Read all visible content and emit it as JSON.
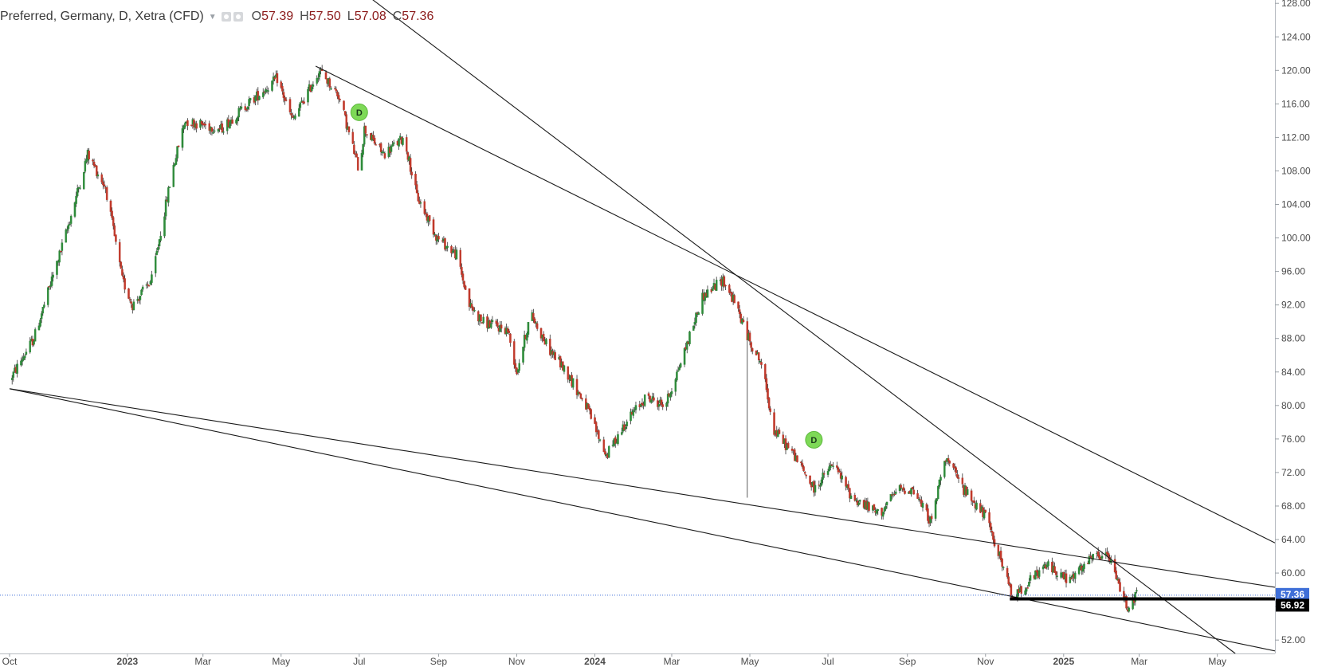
{
  "legend": {
    "title": "Preferred, Germany, D, Xetra (CFD)",
    "open_key": "O",
    "open": "57.39",
    "high_key": "H",
    "high": "57.50",
    "low_key": "L",
    "low": "57.08",
    "close_key": "C",
    "close": "57.36"
  },
  "colors": {
    "up": "#2e8b3a",
    "down": "#c0392b",
    "wick": "#333333",
    "trendline": "#1a1a1a",
    "last_price_tag": "#3f6fd8",
    "support_tag": "#000000",
    "dividend_marker": "#7ed957"
  },
  "chart_data": {
    "type": "candlestick",
    "y_axis": {
      "range": [
        50.4,
        128.4
      ],
      "ticks": [
        "52.00",
        "56.00",
        "60.00",
        "64.00",
        "68.00",
        "72.00",
        "76.00",
        "80.00",
        "84.00",
        "88.00",
        "92.00",
        "96.00",
        "100.00",
        "104.00",
        "108.00",
        "112.00",
        "116.00",
        "120.00",
        "124.00",
        "128.00"
      ],
      "position": "right"
    },
    "x_axis": {
      "range": [
        "2022-10-01",
        "2025-06-15"
      ],
      "ticks": [
        {
          "date": "2022-10-01",
          "label": "Oct",
          "bold": false
        },
        {
          "date": "2023-01-01",
          "label": "2023",
          "bold": true
        },
        {
          "date": "2023-03-01",
          "label": "Mar",
          "bold": false
        },
        {
          "date": "2023-05-01",
          "label": "May",
          "bold": false
        },
        {
          "date": "2023-07-01",
          "label": "Jul",
          "bold": false
        },
        {
          "date": "2023-09-01",
          "label": "Sep",
          "bold": false
        },
        {
          "date": "2023-11-01",
          "label": "Nov",
          "bold": false
        },
        {
          "date": "2024-01-01",
          "label": "2024",
          "bold": true
        },
        {
          "date": "2024-03-01",
          "label": "Mar",
          "bold": false
        },
        {
          "date": "2024-05-01",
          "label": "May",
          "bold": false
        },
        {
          "date": "2024-07-01",
          "label": "Jul",
          "bold": false
        },
        {
          "date": "2024-09-01",
          "label": "Sep",
          "bold": false
        },
        {
          "date": "2024-11-01",
          "label": "Nov",
          "bold": false
        },
        {
          "date": "2025-01-01",
          "label": "2025",
          "bold": true
        },
        {
          "date": "2025-03-01",
          "label": "Mar",
          "bold": false
        },
        {
          "date": "2025-05-01",
          "label": "May",
          "bold": false
        }
      ]
    },
    "grid": false,
    "price_path": [
      [
        "2022-10-01",
        83.0
      ],
      [
        "2022-10-20",
        88.0
      ],
      [
        "2022-11-15",
        101.0
      ],
      [
        "2022-12-01",
        110.0
      ],
      [
        "2022-12-15",
        106.0
      ],
      [
        "2022-12-28",
        95.0
      ],
      [
        "2023-01-05",
        92.0
      ],
      [
        "2023-01-20",
        95.0
      ],
      [
        "2023-02-05",
        108.0
      ],
      [
        "2023-02-15",
        114.0
      ],
      [
        "2023-03-15",
        113.0
      ],
      [
        "2023-04-05",
        116.0
      ],
      [
        "2023-04-28",
        119.0
      ],
      [
        "2023-05-10",
        114.0
      ],
      [
        "2023-05-31",
        120.0
      ],
      [
        "2023-06-15",
        117.0
      ],
      [
        "2023-07-01",
        108.0
      ],
      [
        "2023-07-05",
        113.0
      ],
      [
        "2023-07-20",
        110.0
      ],
      [
        "2023-08-05",
        112.0
      ],
      [
        "2023-08-15",
        105.0
      ],
      [
        "2023-08-31",
        100.0
      ],
      [
        "2023-09-15",
        98.0
      ],
      [
        "2023-09-25",
        92.0
      ],
      [
        "2023-10-05",
        90.0
      ],
      [
        "2023-10-25",
        89.0
      ],
      [
        "2023-11-01",
        84.0
      ],
      [
        "2023-11-12",
        91.0
      ],
      [
        "2023-11-25",
        87.0
      ],
      [
        "2023-12-10",
        84.0
      ],
      [
        "2023-12-25",
        80.0
      ],
      [
        "2024-01-10",
        74.0
      ],
      [
        "2024-01-25",
        78.0
      ],
      [
        "2024-02-10",
        81.0
      ],
      [
        "2024-02-25",
        80.0
      ],
      [
        "2024-03-10",
        86.0
      ],
      [
        "2024-03-25",
        93.0
      ],
      [
        "2024-04-10",
        95.0
      ],
      [
        "2024-04-20",
        92.0
      ],
      [
        "2024-04-30",
        88.0
      ],
      [
        "2024-05-10",
        85.0
      ],
      [
        "2024-05-20",
        77.0
      ],
      [
        "2024-06-05",
        74.0
      ],
      [
        "2024-06-20",
        70.0
      ],
      [
        "2024-07-05",
        73.0
      ],
      [
        "2024-07-20",
        69.0
      ],
      [
        "2024-08-10",
        67.0
      ],
      [
        "2024-08-25",
        70.0
      ],
      [
        "2024-09-05",
        70.0
      ],
      [
        "2024-09-20",
        66.0
      ],
      [
        "2024-09-30",
        74.0
      ],
      [
        "2024-10-15",
        70.0
      ],
      [
        "2024-10-31",
        67.0
      ],
      [
        "2024-11-10",
        63.0
      ],
      [
        "2024-11-22",
        57.0
      ],
      [
        "2024-12-05",
        59.0
      ],
      [
        "2024-12-20",
        61.0
      ],
      [
        "2025-01-05",
        59.0
      ],
      [
        "2025-01-25",
        62.0
      ],
      [
        "2025-02-05",
        62.0
      ],
      [
        "2025-02-12",
        59.0
      ],
      [
        "2025-02-20",
        56.0
      ],
      [
        "2025-02-27",
        57.4
      ]
    ],
    "notable_bars": [
      {
        "date": "2024-04-29",
        "wick_low": 69.0
      }
    ],
    "trendlines": [
      {
        "from": [
          "2023-05-28",
          120.5
        ],
        "to": [
          "2025-06-15",
          63.6
        ]
      },
      {
        "from": [
          "2023-06-28",
          130.0
        ],
        "to": [
          "2025-05-15",
          50.4
        ]
      },
      {
        "from": [
          "2022-10-01",
          82.0
        ],
        "to": [
          "2025-06-15",
          58.3
        ]
      },
      {
        "from": [
          "2022-10-01",
          82.0
        ],
        "to": [
          "2025-06-15",
          50.7
        ]
      }
    ],
    "horizontal_lines": [
      {
        "value": 56.92,
        "style": "solid-thick",
        "label": "56.92"
      },
      {
        "value": 57.36,
        "style": "dotted",
        "label": "57.36"
      }
    ],
    "dividend_markers": [
      {
        "date": "2023-07-01",
        "value": 115.0,
        "label": "D"
      },
      {
        "date": "2024-06-20",
        "value": 75.9,
        "label": "D"
      }
    ],
    "last_price": 57.36
  }
}
